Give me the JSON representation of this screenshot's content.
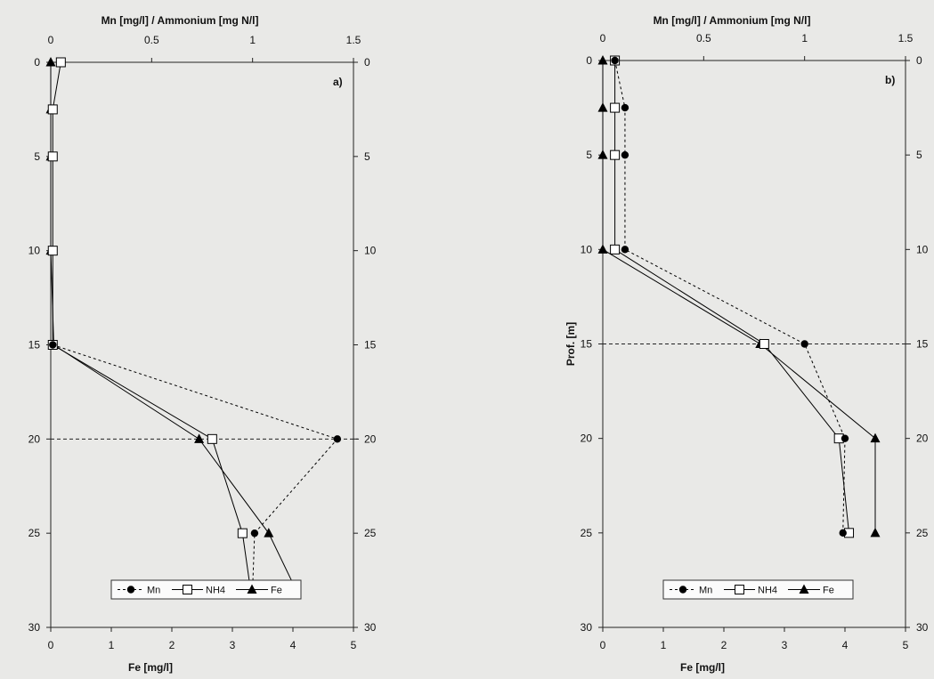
{
  "chart_data": [
    {
      "type": "line",
      "panel_label": "a)",
      "top_axis_label": "Mn [mg/l] / Ammonium [mg N/l]",
      "bottom_axis_label": "Fe [mg/l]",
      "left_axis_label": "",
      "top_xlim": [
        0,
        1.5
      ],
      "top_xticks": [
        "0",
        "0.5",
        "1",
        "1.5"
      ],
      "bottom_xlim": [
        0,
        5
      ],
      "bottom_xticks": [
        "0",
        "1",
        "2",
        "3",
        "4",
        "5"
      ],
      "ylim": [
        0,
        30
      ],
      "yticks": [
        "0",
        "5",
        "10",
        "15",
        "20",
        "25",
        "30"
      ],
      "y_inverted": true,
      "reference_depth": 20,
      "legend": [
        "Mn",
        "NH4",
        "Fe"
      ],
      "legend_position": "bottom",
      "series": [
        {
          "name": "Mn",
          "axis": "top",
          "marker": "circle",
          "line": "dotted",
          "depth": [
            15,
            20,
            25,
            28
          ],
          "values": [
            0.01,
            1.42,
            1.01,
            1.0
          ]
        },
        {
          "name": "NH4",
          "axis": "top",
          "marker": "square",
          "line": "solid",
          "depth": [
            0,
            2.5,
            5,
            10,
            15,
            20,
            25,
            28
          ],
          "values": [
            0.05,
            0.01,
            0.01,
            0.01,
            0.01,
            0.8,
            0.95,
            0.99
          ]
        },
        {
          "name": "Fe",
          "axis": "bottom",
          "marker": "triangle",
          "line": "solid",
          "depth": [
            0,
            2.5,
            5,
            10,
            15,
            20,
            25,
            28
          ],
          "values": [
            0,
            0,
            0,
            0,
            0.05,
            2.45,
            3.6,
            4.05
          ]
        }
      ]
    },
    {
      "type": "line",
      "panel_label": "b)",
      "top_axis_label": "Mn [mg/l] / Ammonium [mg N/l]",
      "bottom_axis_label": "Fe [mg/l]",
      "left_axis_label": "Prof. [m]",
      "top_xlim": [
        0,
        1.5
      ],
      "top_xticks": [
        "0",
        "0.5",
        "1",
        "1.5"
      ],
      "bottom_xlim": [
        0,
        5
      ],
      "bottom_xticks": [
        "0",
        "1",
        "2",
        "3",
        "4",
        "5"
      ],
      "ylim": [
        0,
        30
      ],
      "yticks": [
        "0",
        "5",
        "10",
        "15",
        "20",
        "25",
        "30"
      ],
      "y_inverted": true,
      "reference_depth": 15,
      "legend": [
        "Mn",
        "NH4",
        "Fe"
      ],
      "legend_position": "bottom",
      "series": [
        {
          "name": "Mn",
          "axis": "top",
          "marker": "circle",
          "line": "dotted",
          "depth": [
            0,
            2.5,
            5,
            10,
            15,
            20,
            25
          ],
          "values": [
            0.06,
            0.11,
            0.11,
            0.11,
            1.0,
            1.2,
            1.19
          ]
        },
        {
          "name": "NH4",
          "axis": "top",
          "marker": "square",
          "line": "solid",
          "depth": [
            0,
            2.5,
            5,
            10,
            15,
            20,
            25
          ],
          "values": [
            0.06,
            0.06,
            0.06,
            0.06,
            0.8,
            1.17,
            1.22
          ]
        },
        {
          "name": "Fe",
          "axis": "bottom",
          "marker": "triangle",
          "line": "solid",
          "depth": [
            0,
            2.5,
            5,
            10,
            15,
            20,
            25
          ],
          "values": [
            0,
            0,
            0,
            0,
            2.6,
            4.5,
            4.5
          ]
        }
      ]
    }
  ]
}
